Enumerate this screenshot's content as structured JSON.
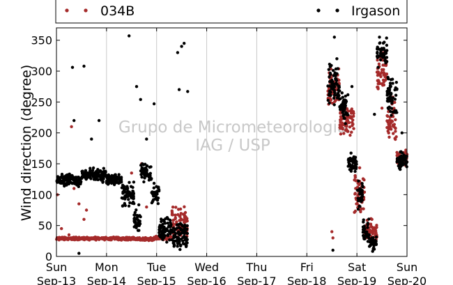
{
  "chart_data": {
    "type": "scatter",
    "title": "",
    "xlabel": "",
    "ylabel": "Wind direction (degree)",
    "ylim": [
      0,
      370
    ],
    "yticks": [
      0,
      50,
      100,
      150,
      200,
      250,
      300,
      350
    ],
    "xlim": [
      "2015-09-13",
      "2015-09-20"
    ],
    "xticks": [
      {
        "line1": "Sun",
        "line2": "Sep-13"
      },
      {
        "line1": "Mon",
        "line2": "Sep-14"
      },
      {
        "line1": "Tue",
        "line2": "Sep-15"
      },
      {
        "line1": "Wed",
        "line2": "Sep-16"
      },
      {
        "line1": "Thu",
        "line2": "Sep-17"
      },
      {
        "line1": "Fri",
        "line2": "Sep-18"
      },
      {
        "line1": "Sat",
        "line2": "Sep-19"
      },
      {
        "line1": "Sun",
        "line2": "Sep-20"
      }
    ],
    "grid": "vertical",
    "legend_position": "top",
    "series": [
      {
        "name": "034B",
        "color": "#a52a2a",
        "segments": [
          {
            "t0": 0.0,
            "t1": 0.55,
            "y": 29,
            "spread": 3
          },
          {
            "t0": 0.55,
            "t1": 1.0,
            "y": 29,
            "spread": 3
          },
          {
            "t0": 1.0,
            "t1": 1.55,
            "y": 29,
            "spread": 3
          },
          {
            "t0": 1.55,
            "t1": 1.95,
            "y": 28,
            "spread": 3
          },
          {
            "t0": 1.95,
            "t1": 2.3,
            "y": 30,
            "spread": 4
          },
          {
            "t0": 2.3,
            "t1": 2.62,
            "y": 50,
            "spread": 40
          },
          {
            "t0": 5.42,
            "t1": 5.65,
            "y": 270,
            "spread": 50
          },
          {
            "t0": 5.65,
            "t1": 5.95,
            "y": 220,
            "spread": 35
          },
          {
            "t0": 5.95,
            "t1": 6.15,
            "y": 100,
            "spread": 50
          },
          {
            "t0": 6.15,
            "t1": 6.4,
            "y": 40,
            "spread": 25
          },
          {
            "t0": 6.4,
            "t1": 6.6,
            "y": 300,
            "spread": 40
          },
          {
            "t0": 6.6,
            "t1": 6.8,
            "y": 220,
            "spread": 50
          },
          {
            "t0": 6.8,
            "t1": 7.0,
            "y": 160,
            "spread": 20
          }
        ],
        "outliers": [
          [
            0.02,
            100
          ],
          [
            0.1,
            45
          ],
          [
            0.25,
            35
          ],
          [
            0.35,
            110
          ],
          [
            0.45,
            85
          ],
          [
            0.55,
            60
          ],
          [
            0.6,
            75
          ],
          [
            0.7,
            30
          ],
          [
            0.3,
            210
          ],
          [
            1.5,
            135
          ],
          [
            1.7,
            150
          ],
          [
            1.8,
            80
          ],
          [
            2.1,
            40
          ],
          [
            5.5,
            40
          ],
          [
            5.52,
            30
          ],
          [
            6.3,
            60
          ],
          [
            6.5,
            240
          ]
        ]
      },
      {
        "name": "Irgason",
        "color": "#000000",
        "segments": [
          {
            "t0": 0.0,
            "t1": 0.5,
            "y": 123,
            "spread": 14
          },
          {
            "t0": 0.5,
            "t1": 1.0,
            "y": 132,
            "spread": 14
          },
          {
            "t0": 1.0,
            "t1": 1.3,
            "y": 125,
            "spread": 14
          },
          {
            "t0": 1.3,
            "t1": 1.55,
            "y": 100,
            "spread": 25
          },
          {
            "t0": 1.55,
            "t1": 1.68,
            "y": 60,
            "spread": 30
          },
          {
            "t0": 1.68,
            "t1": 1.9,
            "y": 135,
            "spread": 20
          },
          {
            "t0": 1.9,
            "t1": 2.05,
            "y": 100,
            "spread": 25
          },
          {
            "t0": 2.05,
            "t1": 2.3,
            "y": 45,
            "spread": 25
          },
          {
            "t0": 2.3,
            "t1": 2.62,
            "y": 35,
            "spread": 35
          },
          {
            "t0": 5.42,
            "t1": 5.65,
            "y": 280,
            "spread": 45
          },
          {
            "t0": 5.65,
            "t1": 5.82,
            "y": 240,
            "spread": 35
          },
          {
            "t0": 5.82,
            "t1": 6.0,
            "y": 150,
            "spread": 20
          },
          {
            "t0": 6.0,
            "t1": 6.12,
            "y": 100,
            "spread": 30
          },
          {
            "t0": 6.12,
            "t1": 6.25,
            "y": 40,
            "spread": 25
          },
          {
            "t0": 6.25,
            "t1": 6.4,
            "y": 20,
            "spread": 20
          },
          {
            "t0": 6.4,
            "t1": 6.6,
            "y": 330,
            "spread": 30
          },
          {
            "t0": 6.6,
            "t1": 6.8,
            "y": 260,
            "spread": 45
          },
          {
            "t0": 6.8,
            "t1": 7.0,
            "y": 155,
            "spread": 20
          }
        ],
        "outliers": [
          [
            0.32,
            306
          ],
          [
            0.55,
            308
          ],
          [
            0.35,
            220
          ],
          [
            0.85,
            220
          ],
          [
            0.7,
            190
          ],
          [
            1.45,
            357
          ],
          [
            1.6,
            275
          ],
          [
            1.68,
            254
          ],
          [
            1.95,
            247
          ],
          [
            2.42,
            330
          ],
          [
            2.5,
            340
          ],
          [
            2.55,
            345
          ],
          [
            2.62,
            267
          ],
          [
            2.45,
            270
          ],
          [
            1.8,
            190
          ],
          [
            5.55,
            355
          ],
          [
            5.6,
            320
          ],
          [
            5.9,
            275
          ],
          [
            6.35,
            230
          ],
          [
            6.45,
            355
          ],
          [
            0.45,
            5
          ],
          [
            5.52,
            10
          ],
          [
            6.9,
            200
          ]
        ]
      }
    ],
    "watermark": [
      "Grupo de Micrometeorologia",
      "IAG / USP"
    ]
  }
}
